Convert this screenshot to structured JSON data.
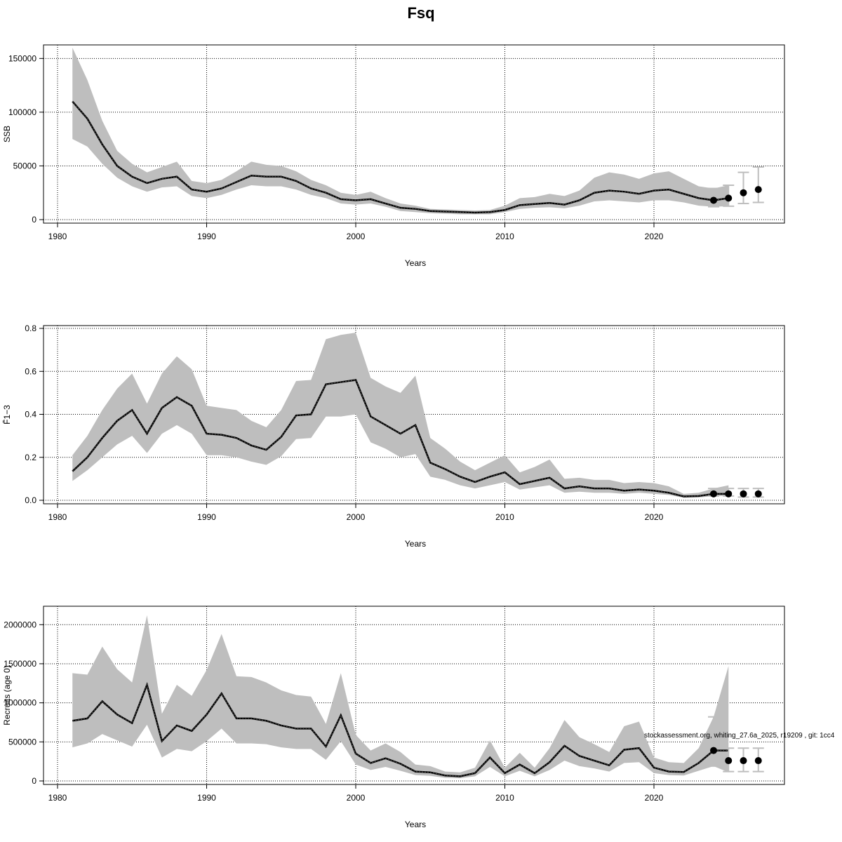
{
  "chart_data": {
    "title": "Fsq",
    "type": "line",
    "watermark": "stockassessment.org, whiting_27.6a_2025, r19209 , git: 1cc4",
    "colors": {
      "band": "#bebebe",
      "line": "#000000",
      "errorbar": "#bebebe"
    },
    "panels": [
      {
        "ylabel": "SSB",
        "xlabel": "Years",
        "xlim": [
          1980,
          2028
        ],
        "ylim": [
          0,
          160000
        ],
        "yticks": [
          0,
          50000,
          100000,
          150000
        ],
        "yticklabels": [
          "0",
          "50000",
          "100000",
          "150000"
        ],
        "xticks": [
          1980,
          1990,
          2000,
          2010,
          2020
        ],
        "xticklabels": [
          "1980",
          "1990",
          "2000",
          "2010",
          "2020"
        ],
        "years": [
          1981,
          1982,
          1983,
          1984,
          1985,
          1986,
          1987,
          1988,
          1989,
          1990,
          1991,
          1992,
          1993,
          1994,
          1995,
          1996,
          1997,
          1998,
          1999,
          2000,
          2001,
          2002,
          2003,
          2004,
          2005,
          2006,
          2007,
          2008,
          2009,
          2010,
          2011,
          2012,
          2013,
          2014,
          2015,
          2016,
          2017,
          2018,
          2019,
          2020,
          2021,
          2022,
          2023,
          2024,
          2025
        ],
        "estimate": [
          110000,
          94000,
          70000,
          50000,
          40000,
          34000,
          38000,
          40000,
          28000,
          26000,
          29000,
          35000,
          41000,
          40000,
          40000,
          36000,
          29000,
          25000,
          19000,
          18000,
          19000,
          15000,
          11000,
          10000,
          8000,
          7500,
          7000,
          6500,
          7000,
          9000,
          13500,
          14500,
          15500,
          14000,
          18000,
          25000,
          27000,
          26000,
          24000,
          27000,
          28000,
          24000,
          20000,
          18000,
          20000
        ],
        "lower": [
          75000,
          68000,
          52000,
          39000,
          31000,
          26000,
          30000,
          31000,
          22000,
          20000,
          23000,
          28000,
          32000,
          31000,
          31000,
          28000,
          23000,
          20000,
          15000,
          14000,
          15000,
          12000,
          8000,
          7000,
          6000,
          5500,
          5000,
          5000,
          5000,
          7000,
          10000,
          11000,
          11500,
          10500,
          13000,
          17000,
          18000,
          17000,
          16000,
          18000,
          18000,
          16000,
          13000,
          12000,
          12500
        ],
        "upper": [
          160000,
          130000,
          92000,
          64000,
          52000,
          44000,
          49000,
          54000,
          36000,
          34000,
          37000,
          45000,
          54000,
          51000,
          50000,
          45000,
          37000,
          32000,
          25000,
          23000,
          26000,
          20000,
          15000,
          13000,
          10000,
          9500,
          9000,
          8500,
          9000,
          13000,
          20000,
          21000,
          24000,
          22000,
          27000,
          39000,
          44000,
          42000,
          38000,
          43000,
          45000,
          38000,
          31000,
          29000,
          32000
        ],
        "forecast": {
          "years": [
            2024,
            2025,
            2026,
            2027
          ],
          "median": [
            18000,
            20000,
            25000,
            28000
          ],
          "low": [
            12000,
            12500,
            15000,
            16000
          ],
          "high": [
            29000,
            32000,
            44000,
            49000
          ]
        }
      },
      {
        "ylabel": "F̄1−3",
        "xlabel": "Years",
        "xlim": [
          1980,
          2028
        ],
        "ylim": [
          0,
          0.8
        ],
        "yticks": [
          0,
          0.2,
          0.4,
          0.6,
          0.8
        ],
        "yticklabels": [
          "0.0",
          "0.2",
          "0.4",
          "0.6",
          "0.8"
        ],
        "xticks": [
          1980,
          1990,
          2000,
          2010,
          2020
        ],
        "xticklabels": [
          "1980",
          "1990",
          "2000",
          "2010",
          "2020"
        ],
        "years": [
          1981,
          1982,
          1983,
          1984,
          1985,
          1986,
          1987,
          1988,
          1989,
          1990,
          1991,
          1992,
          1993,
          1994,
          1995,
          1996,
          1997,
          1998,
          1999,
          2000,
          2001,
          2002,
          2003,
          2004,
          2005,
          2006,
          2007,
          2008,
          2009,
          2010,
          2011,
          2012,
          2013,
          2014,
          2015,
          2016,
          2017,
          2018,
          2019,
          2020,
          2021,
          2022,
          2023,
          2024,
          2025
        ],
        "estimate": [
          0.135,
          0.2,
          0.29,
          0.37,
          0.42,
          0.31,
          0.43,
          0.48,
          0.44,
          0.31,
          0.305,
          0.29,
          0.255,
          0.235,
          0.295,
          0.395,
          0.4,
          0.54,
          0.55,
          0.56,
          0.39,
          0.35,
          0.31,
          0.35,
          0.175,
          0.145,
          0.11,
          0.085,
          0.11,
          0.13,
          0.075,
          0.09,
          0.105,
          0.055,
          0.065,
          0.055,
          0.055,
          0.045,
          0.05,
          0.045,
          0.035,
          0.018,
          0.02,
          0.03,
          0.03
        ],
        "lower": [
          0.09,
          0.14,
          0.2,
          0.26,
          0.3,
          0.22,
          0.31,
          0.35,
          0.31,
          0.21,
          0.21,
          0.2,
          0.18,
          0.165,
          0.205,
          0.285,
          0.29,
          0.39,
          0.39,
          0.4,
          0.27,
          0.24,
          0.2,
          0.215,
          0.11,
          0.095,
          0.07,
          0.055,
          0.07,
          0.085,
          0.05,
          0.06,
          0.07,
          0.035,
          0.04,
          0.035,
          0.035,
          0.03,
          0.035,
          0.03,
          0.025,
          0.012,
          0.013,
          0.02,
          0.02
        ],
        "upper": [
          0.21,
          0.3,
          0.42,
          0.52,
          0.59,
          0.45,
          0.59,
          0.67,
          0.61,
          0.44,
          0.43,
          0.42,
          0.37,
          0.34,
          0.42,
          0.555,
          0.56,
          0.75,
          0.77,
          0.78,
          0.57,
          0.53,
          0.5,
          0.58,
          0.29,
          0.24,
          0.18,
          0.14,
          0.175,
          0.21,
          0.13,
          0.155,
          0.19,
          0.1,
          0.105,
          0.095,
          0.095,
          0.08,
          0.085,
          0.08,
          0.065,
          0.03,
          0.035,
          0.055,
          0.07
        ],
        "forecast": {
          "years": [
            2024,
            2025,
            2026,
            2027
          ],
          "median": [
            0.03,
            0.03,
            0.03,
            0.03
          ],
          "low": [
            0.02,
            0.02,
            0.015,
            0.015
          ],
          "high": [
            0.055,
            0.055,
            0.055,
            0.055
          ]
        }
      },
      {
        "ylabel": "Recruits (age 0)",
        "xlabel": "Years",
        "xlim": [
          1980,
          2028
        ],
        "ylim": [
          0,
          2200000
        ],
        "yticks": [
          0,
          500000,
          1000000,
          1500000,
          2000000
        ],
        "yticklabels": [
          "0",
          "500000",
          "1000000",
          "1500000",
          "2000000"
        ],
        "xticks": [
          1980,
          1990,
          2000,
          2010,
          2020
        ],
        "xticklabels": [
          "1980",
          "1990",
          "2000",
          "2010",
          "2020"
        ],
        "years": [
          1981,
          1982,
          1983,
          1984,
          1985,
          1986,
          1987,
          1988,
          1989,
          1990,
          1991,
          1992,
          1993,
          1994,
          1995,
          1996,
          1997,
          1998,
          1999,
          2000,
          2001,
          2002,
          2003,
          2004,
          2005,
          2006,
          2007,
          2008,
          2009,
          2010,
          2011,
          2012,
          2013,
          2014,
          2015,
          2016,
          2017,
          2018,
          2019,
          2020,
          2021,
          2022,
          2023,
          2024,
          2025
        ],
        "estimate": [
          770000,
          800000,
          1020000,
          850000,
          740000,
          1230000,
          510000,
          710000,
          640000,
          850000,
          1120000,
          800000,
          800000,
          770000,
          710000,
          670000,
          670000,
          440000,
          840000,
          350000,
          230000,
          290000,
          220000,
          120000,
          110000,
          70000,
          60000,
          100000,
          300000,
          100000,
          210000,
          100000,
          240000,
          450000,
          320000,
          260000,
          200000,
          400000,
          420000,
          170000,
          120000,
          115000,
          230000,
          390000,
          390000
        ],
        "lower": [
          430000,
          480000,
          600000,
          520000,
          440000,
          720000,
          300000,
          410000,
          380000,
          510000,
          670000,
          480000,
          480000,
          470000,
          430000,
          410000,
          410000,
          270000,
          510000,
          210000,
          140000,
          180000,
          130000,
          75000,
          65000,
          40000,
          35000,
          60000,
          180000,
          60000,
          130000,
          60000,
          140000,
          260000,
          190000,
          160000,
          120000,
          230000,
          240000,
          100000,
          75000,
          70000,
          130000,
          190000,
          110000
        ],
        "upper": [
          1380000,
          1360000,
          1720000,
          1430000,
          1260000,
          2120000,
          860000,
          1230000,
          1090000,
          1420000,
          1880000,
          1340000,
          1330000,
          1260000,
          1160000,
          1100000,
          1080000,
          730000,
          1380000,
          590000,
          390000,
          480000,
          370000,
          210000,
          190000,
          120000,
          110000,
          170000,
          520000,
          170000,
          360000,
          170000,
          420000,
          780000,
          560000,
          470000,
          370000,
          700000,
          760000,
          300000,
          240000,
          230000,
          420000,
          820000,
          1470000
        ],
        "forecast": {
          "years": [
            2024,
            2025,
            2026,
            2027
          ],
          "median": [
            390000,
            260000,
            260000,
            260000
          ],
          "low": [
            190000,
            120000,
            120000,
            120000
          ],
          "high": [
            820000,
            420000,
            420000,
            420000
          ]
        }
      }
    ]
  }
}
